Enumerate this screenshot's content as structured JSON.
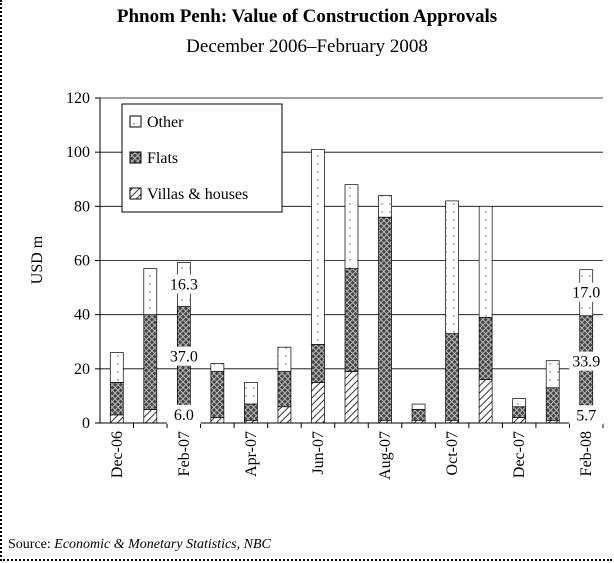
{
  "chart_data": {
    "type": "stacked_bar",
    "title": "Phnom Penh: Value of Construction Approvals",
    "subtitle": "December 2006–February 2008",
    "y_label": "USD m",
    "source_label": "Source:",
    "source": "Economic & Monetary Statistics, NBC",
    "categories": [
      "Dec-06",
      null,
      "Feb-07",
      null,
      "Apr-07",
      null,
      "Jun-07",
      null,
      "Aug-07",
      null,
      "Oct-07",
      null,
      "Dec-07",
      null,
      "Feb-08"
    ],
    "series": [
      {
        "name": "Villas & houses",
        "pattern": "hatch",
        "color": "#000000",
        "values": [
          3,
          5,
          6.0,
          2,
          1,
          6,
          15,
          19,
          1,
          1,
          1,
          16,
          2,
          1,
          5.7
        ],
        "value_labels": [
          null,
          null,
          "6.0",
          null,
          null,
          null,
          null,
          null,
          null,
          null,
          null,
          null,
          null,
          null,
          "5.7"
        ]
      },
      {
        "name": "Flats",
        "pattern": "cross",
        "color": "#000000",
        "values": [
          12,
          35,
          37.0,
          17,
          6,
          13,
          14,
          38,
          75,
          4,
          32,
          23,
          4,
          12,
          33.9
        ],
        "value_labels": [
          null,
          null,
          "37.0",
          null,
          null,
          null,
          null,
          null,
          null,
          null,
          null,
          null,
          null,
          null,
          "33.9"
        ]
      },
      {
        "name": "Other",
        "pattern": "dots",
        "color": "#000000",
        "values": [
          11,
          17,
          16.3,
          3,
          8,
          9,
          72,
          31,
          8,
          2,
          49,
          41,
          3,
          10,
          17.0
        ],
        "value_labels": [
          null,
          null,
          "16.3",
          null,
          null,
          null,
          null,
          null,
          null,
          null,
          null,
          null,
          null,
          null,
          "17.0"
        ]
      }
    ],
    "ylim": [
      0,
      120
    ],
    "yticks": [
      0,
      20,
      40,
      60,
      80,
      100,
      120
    ],
    "grid": true
  }
}
